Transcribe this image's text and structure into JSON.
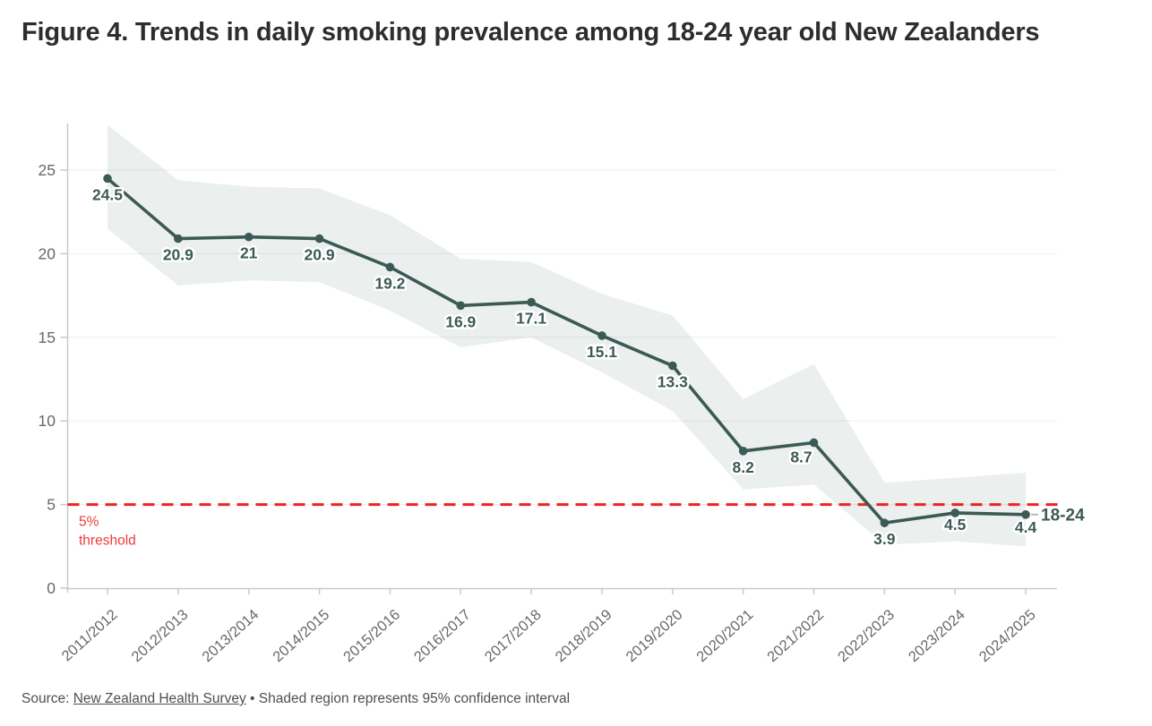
{
  "header": {
    "title": "Figure 4. Trends in daily smoking prevalence among 18-24 year old New Zealanders"
  },
  "chart_data": {
    "type": "line",
    "title": "Figure 4. Trends in daily smoking prevalence among 18-24 year old New Zealanders",
    "categories": [
      "2011/2012",
      "2012/2013",
      "2013/2014",
      "2014/2015",
      "2015/2016",
      "2016/2017",
      "2017/2018",
      "2018/2019",
      "2019/2020",
      "2020/2021",
      "2021/2022",
      "2022/2023",
      "2023/2024",
      "2024/2025"
    ],
    "series": [
      {
        "name": "18-24",
        "values": [
          24.5,
          20.9,
          21,
          20.9,
          19.2,
          16.9,
          17.1,
          15.1,
          13.3,
          8.2,
          8.7,
          3.9,
          4.5,
          4.4
        ],
        "point_labels": [
          "24.5",
          "20.9",
          "21",
          "20.9",
          "19.2",
          "16.9",
          "17.1",
          "15.1",
          "13.3",
          "8.2",
          "8.7",
          "3.9",
          "4.5",
          "4.4"
        ],
        "ci_lower": [
          21.5,
          18.1,
          18.4,
          18.3,
          16.6,
          14.4,
          15.0,
          12.9,
          10.6,
          5.9,
          6.2,
          2.6,
          2.8,
          2.5
        ],
        "ci_upper": [
          27.7,
          24.4,
          24.0,
          23.9,
          22.3,
          19.7,
          19.5,
          17.6,
          16.3,
          11.3,
          13.4,
          6.3,
          6.6,
          6.9
        ]
      }
    ],
    "end_label": "18-24",
    "xlabel": "",
    "ylabel": "",
    "yticks": [
      0,
      5,
      10,
      15,
      20,
      25
    ],
    "ylim": [
      0,
      28
    ],
    "grid": "horizontal",
    "legend_position": "end-of-line",
    "threshold": {
      "value": 5,
      "label_lines": [
        "5%",
        "threshold"
      ]
    },
    "colors": {
      "line": "#3c5a55",
      "point_label": "#3c5a55",
      "band": "#e7eceb",
      "threshold_line": "#ee2222",
      "threshold_text": "#ef3b3b",
      "axis": "#c9c9c9",
      "tick_text": "#686868"
    }
  },
  "footer": {
    "source_prefix": "Source: ",
    "source_link": "New Zealand Health Survey",
    "separator": " • ",
    "note": "Shaded region represents 95% confidence interval"
  }
}
